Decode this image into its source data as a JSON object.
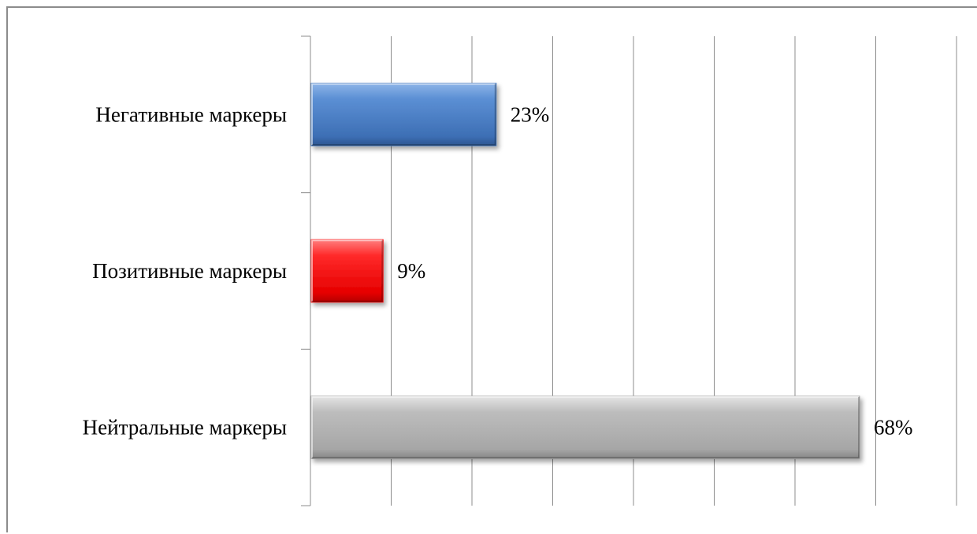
{
  "chart_data": {
    "type": "bar",
    "orientation": "horizontal",
    "categories": [
      "Негативные маркеры",
      "Позитивные маркеры",
      "Нейтральные маркеры"
    ],
    "values": [
      23,
      9,
      68
    ],
    "value_labels": [
      "23%",
      "9%",
      "68%"
    ],
    "colors": [
      "#4a7ec4",
      "#ff1a1a",
      "#b0b0b0"
    ],
    "xlim": [
      0,
      80
    ],
    "x_tick_step": 10,
    "x_tick_labels_shown": false,
    "grid": "vertical",
    "legend": "none",
    "title": "",
    "xlabel": "",
    "ylabel": ""
  }
}
